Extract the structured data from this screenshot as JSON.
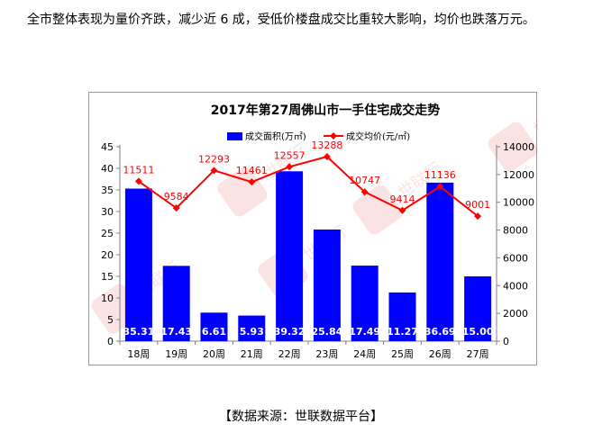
{
  "intro_text": "全市整体表现为量价齐跌，减少近 6 成，受低价楼盘成交比重较大影响，均价也跌落万元。",
  "source_text": "【数据来源：世联数据平台】",
  "watermark_text": "世联行",
  "chart_data": {
    "type": "bar+line",
    "title": "2017年第27周佛山市一手住宅成交走势",
    "categories": [
      "18周",
      "19周",
      "20周",
      "21周",
      "22周",
      "23周",
      "24周",
      "25周",
      "26周",
      "27周"
    ],
    "series": [
      {
        "name": "成交面积(万㎡)",
        "kind": "bar",
        "axis": "left",
        "color": "#0000ff",
        "values": [
          35.31,
          17.43,
          6.61,
          5.93,
          39.32,
          25.84,
          17.49,
          11.27,
          36.69,
          15.0
        ],
        "labels": [
          "35.31",
          "17.43",
          "6.61",
          "5.93",
          "39.32",
          "25.84",
          "17.49",
          "11.27",
          "36.69",
          "15.00"
        ]
      },
      {
        "name": "成交均价(元/㎡)",
        "kind": "line",
        "axis": "right",
        "color": "#ff0000",
        "values": [
          11511,
          9584,
          12293,
          11461,
          12557,
          13288,
          10747,
          9414,
          11136,
          9001
        ],
        "labels": [
          "11511",
          "9584",
          "12293",
          "11461",
          "12557",
          "13288",
          "10747",
          "9414",
          "11136",
          "9001"
        ]
      }
    ],
    "y_left": {
      "min": 0,
      "max": 45,
      "step": 5,
      "ticks": [
        "0",
        "5",
        "10",
        "15",
        "20",
        "25",
        "30",
        "35",
        "40",
        "45"
      ]
    },
    "y_right": {
      "min": 0,
      "max": 14000,
      "step": 2000,
      "ticks": [
        "0",
        "2000",
        "4000",
        "6000",
        "8000",
        "10000",
        "12000",
        "14000"
      ]
    },
    "legend_position": "top-center",
    "grid": false
  }
}
